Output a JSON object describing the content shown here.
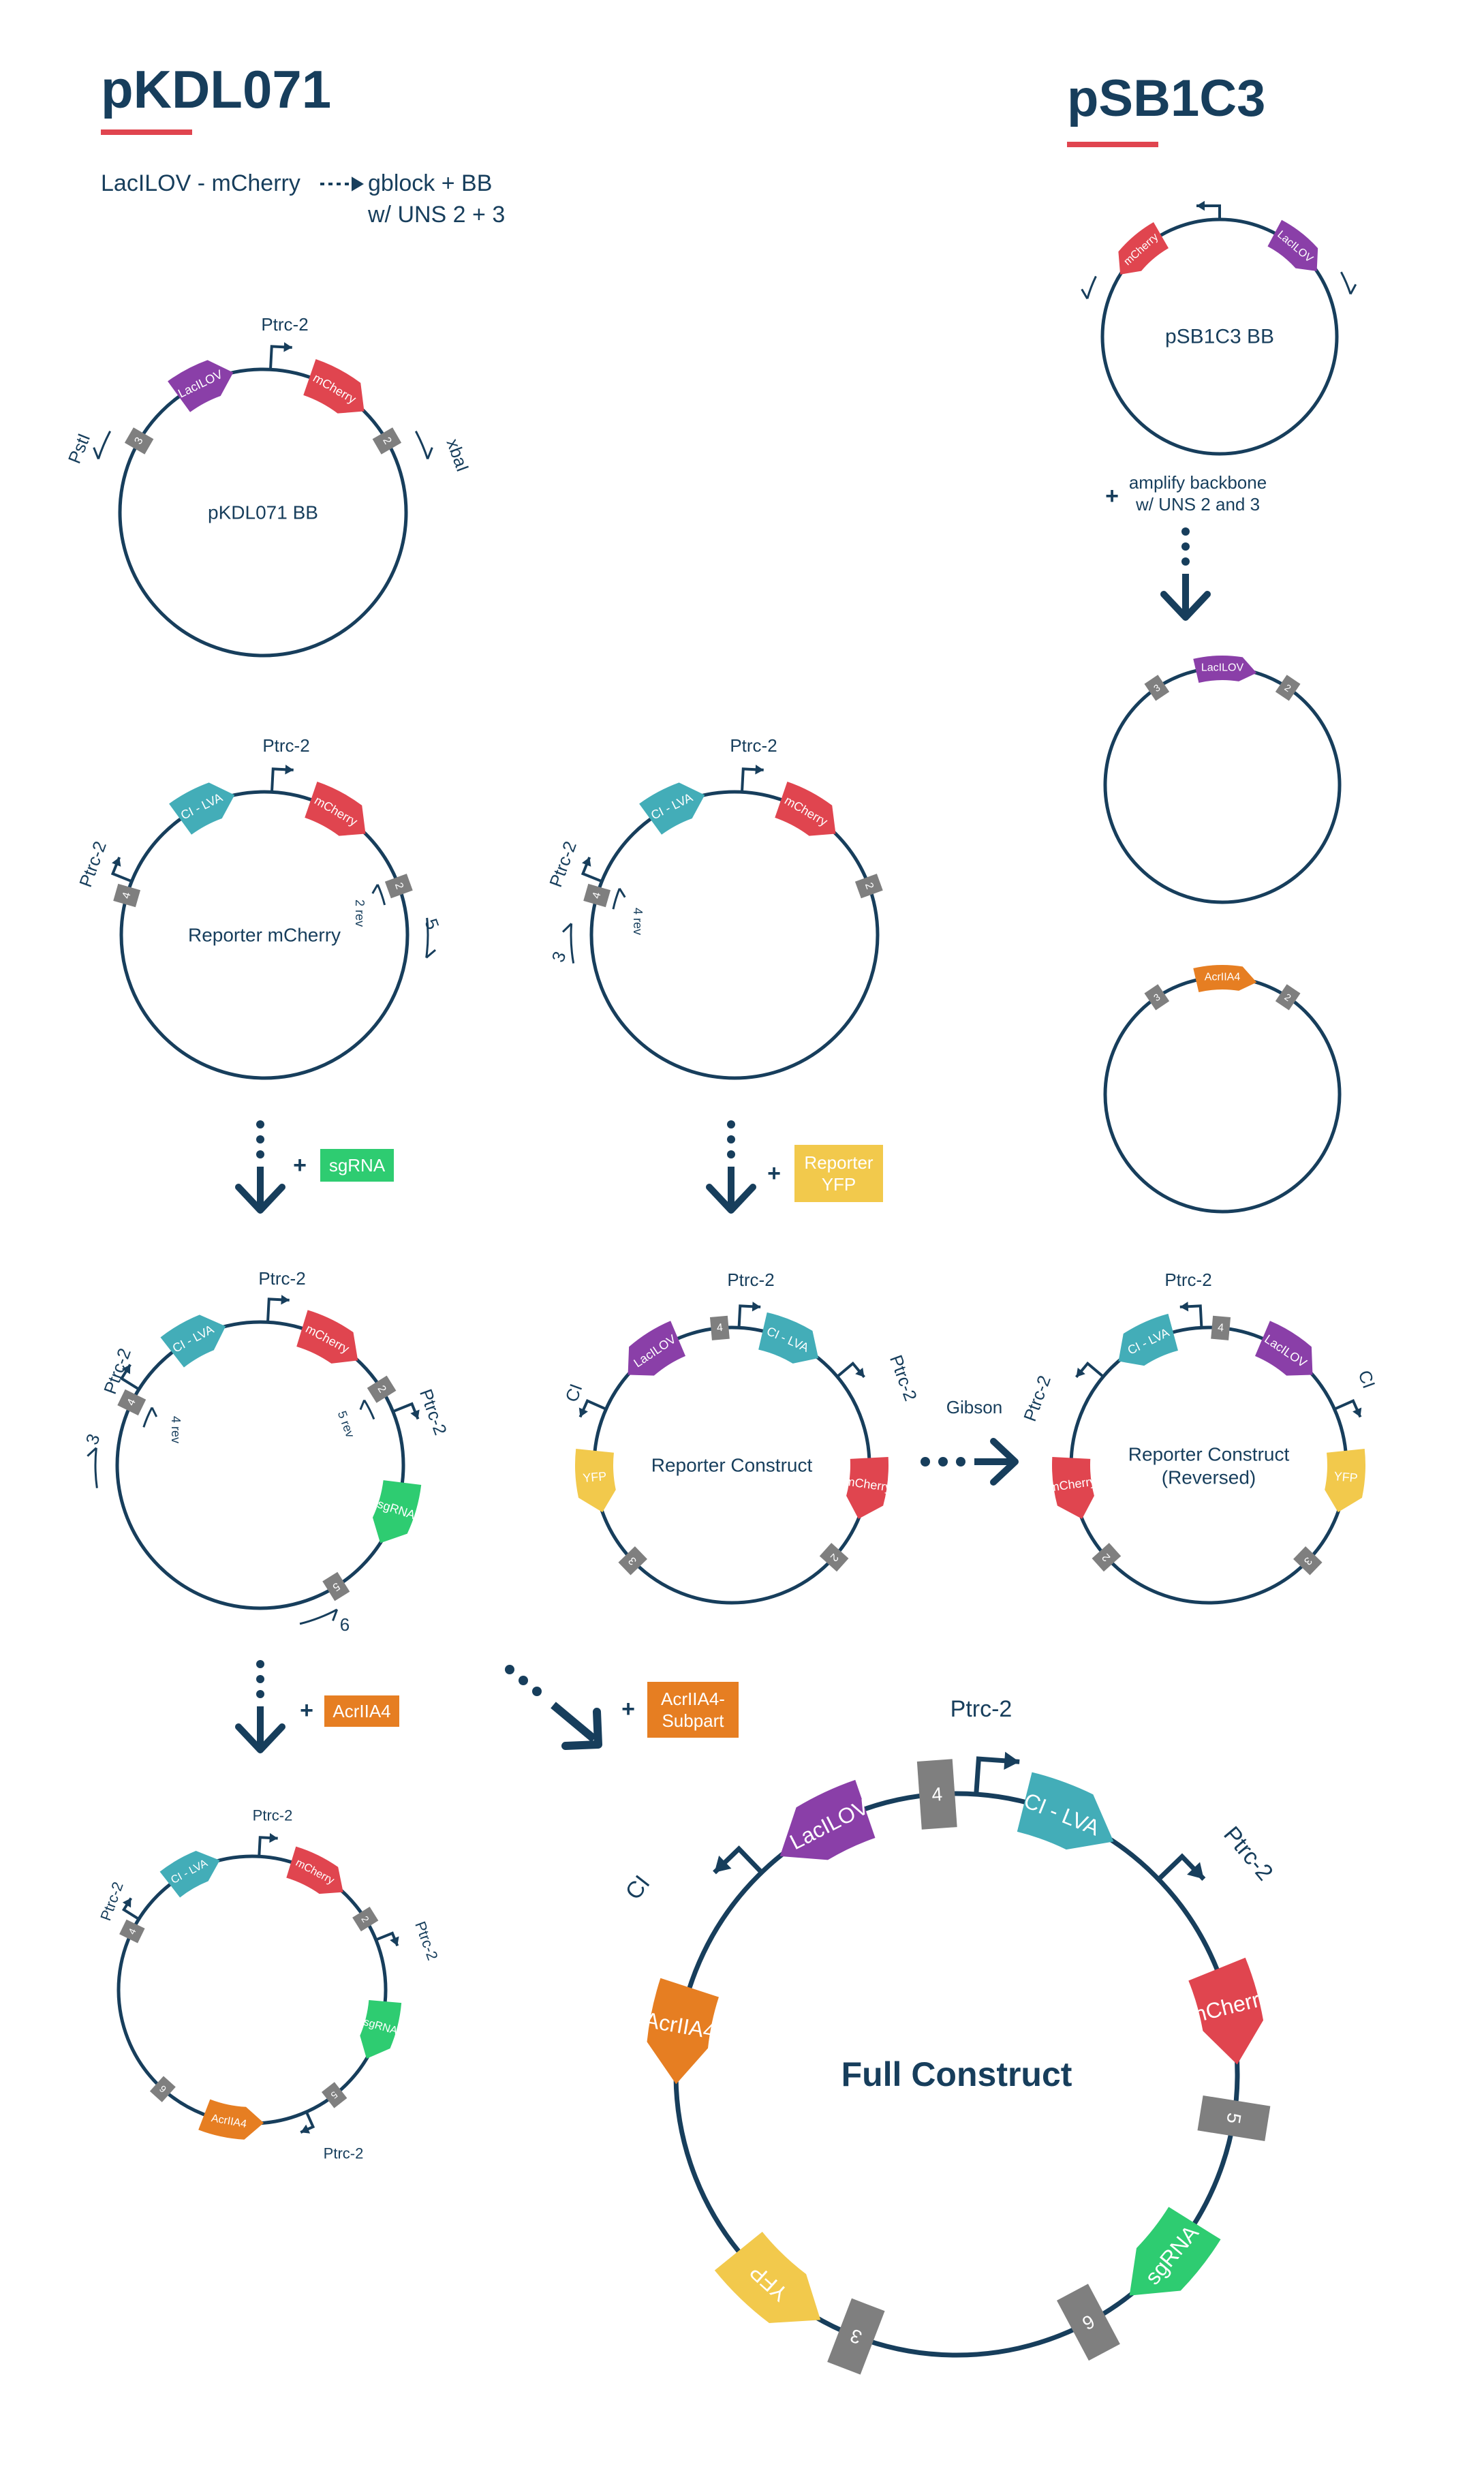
{
  "colors": {
    "navy": "#173e5c",
    "accent_underline": "#e0454f",
    "lacilov": "#8a3fa8",
    "mcherry": "#e0454f",
    "ci_lva": "#43adb8",
    "yfp": "#f2c94c",
    "sgrna": "#2ecc71",
    "acriia4": "#e67e22",
    "uns_box": "#7f7f7f"
  },
  "header": {
    "left_title": "pKDL071",
    "right_title": "pSB1C3",
    "flow_from": "LacILOV - mCherry",
    "flow_to_line1": "gblock + BB",
    "flow_to_line2": "w/ UNS 2 + 3"
  },
  "steps": {
    "amplify_line1": "amplify backbone",
    "amplify_line2": "w/ UNS 2 and 3",
    "plus": "+",
    "sgrna": "sgRNA",
    "reporter_yfp_line1": "Reporter",
    "reporter_yfp_line2": "YFP",
    "gibson": "Gibson",
    "acriia4": "AcrIIA4",
    "acriia4_subpart_line1": "AcrIIA4-",
    "acriia4_subpart_line2": "Subpart"
  },
  "plasmids": {
    "pkdl_bb": {
      "center_label": "pKDL071 BB",
      "parts": [
        "LacILOV",
        "mCherry"
      ],
      "uns": [
        "3",
        "2"
      ],
      "promoters": [
        "Ptrc-2"
      ],
      "sites": [
        "PstI",
        "xbaI"
      ]
    },
    "psb_bb": {
      "center_label": "pSB1C3 BB",
      "parts": [
        "mCherry",
        "LacILOV"
      ]
    },
    "psb_lacilov": {
      "parts": [
        "LacILOV"
      ],
      "uns": [
        "3",
        "2"
      ]
    },
    "psb_acriia4": {
      "parts": [
        "AcrIIA4"
      ],
      "uns": [
        "3",
        "2"
      ]
    },
    "reporter_mcherry": {
      "center_label": "Reporter mCherry",
      "parts": [
        "CI - LVA",
        "mCherry"
      ],
      "uns": [
        "4",
        "2"
      ],
      "promoters": [
        "Ptrc-2",
        "Ptrc-2"
      ],
      "primers": [
        "2 rev",
        "5"
      ]
    },
    "reporter_mcherry_b": {
      "parts": [
        "CI - LVA",
        "mCherry"
      ],
      "uns": [
        "4",
        "2"
      ],
      "promoters": [
        "Ptrc-2",
        "Ptrc-2"
      ],
      "primers": [
        "4 rev",
        "3"
      ]
    },
    "reporter_sgrna": {
      "parts": [
        "CI - LVA",
        "mCherry",
        "sgRNA"
      ],
      "uns": [
        "4",
        "2",
        "5"
      ],
      "promoters": [
        "Ptrc-2",
        "Ptrc-2",
        "Ptrc-2"
      ],
      "primers": [
        "4 rev",
        "3",
        "5 rev",
        "6"
      ]
    },
    "reporter_construct": {
      "center_label": "Reporter Construct",
      "parts": [
        "LacILOV",
        "CI - LVA",
        "YFP",
        "mCherry"
      ],
      "uns": [
        "4",
        "3",
        "2"
      ],
      "promoters": [
        "Ptrc-2",
        "Ptrc-2",
        "CI"
      ]
    },
    "reporter_reversed": {
      "center_label_line1": "Reporter Construct",
      "center_label_line2": "(Reversed)",
      "parts": [
        "CI - LVA",
        "LacILOV",
        "mCherry",
        "YFP"
      ],
      "uns": [
        "4",
        "2",
        "3"
      ],
      "promoters": [
        "Ptrc-2",
        "Ptrc-2",
        "CI"
      ]
    },
    "reporter_acr": {
      "parts": [
        "CI - LVA",
        "mCherry",
        "sgRNA",
        "AcrIIA4"
      ],
      "uns": [
        "4",
        "2",
        "5",
        "6"
      ],
      "promoters": [
        "Ptrc-2",
        "Ptrc-2",
        "Ptrc-2",
        "Ptrc-2"
      ]
    },
    "full_construct": {
      "center_label": "Full Construct",
      "parts": [
        "LacILOV",
        "CI - LVA",
        "mCherry",
        "sgRNA",
        "YFP",
        "AcrIIA4"
      ],
      "uns": [
        "4",
        "5",
        "6",
        "3"
      ],
      "promoters": [
        "Ptrc-2",
        "Ptrc-2",
        "CI"
      ]
    }
  }
}
